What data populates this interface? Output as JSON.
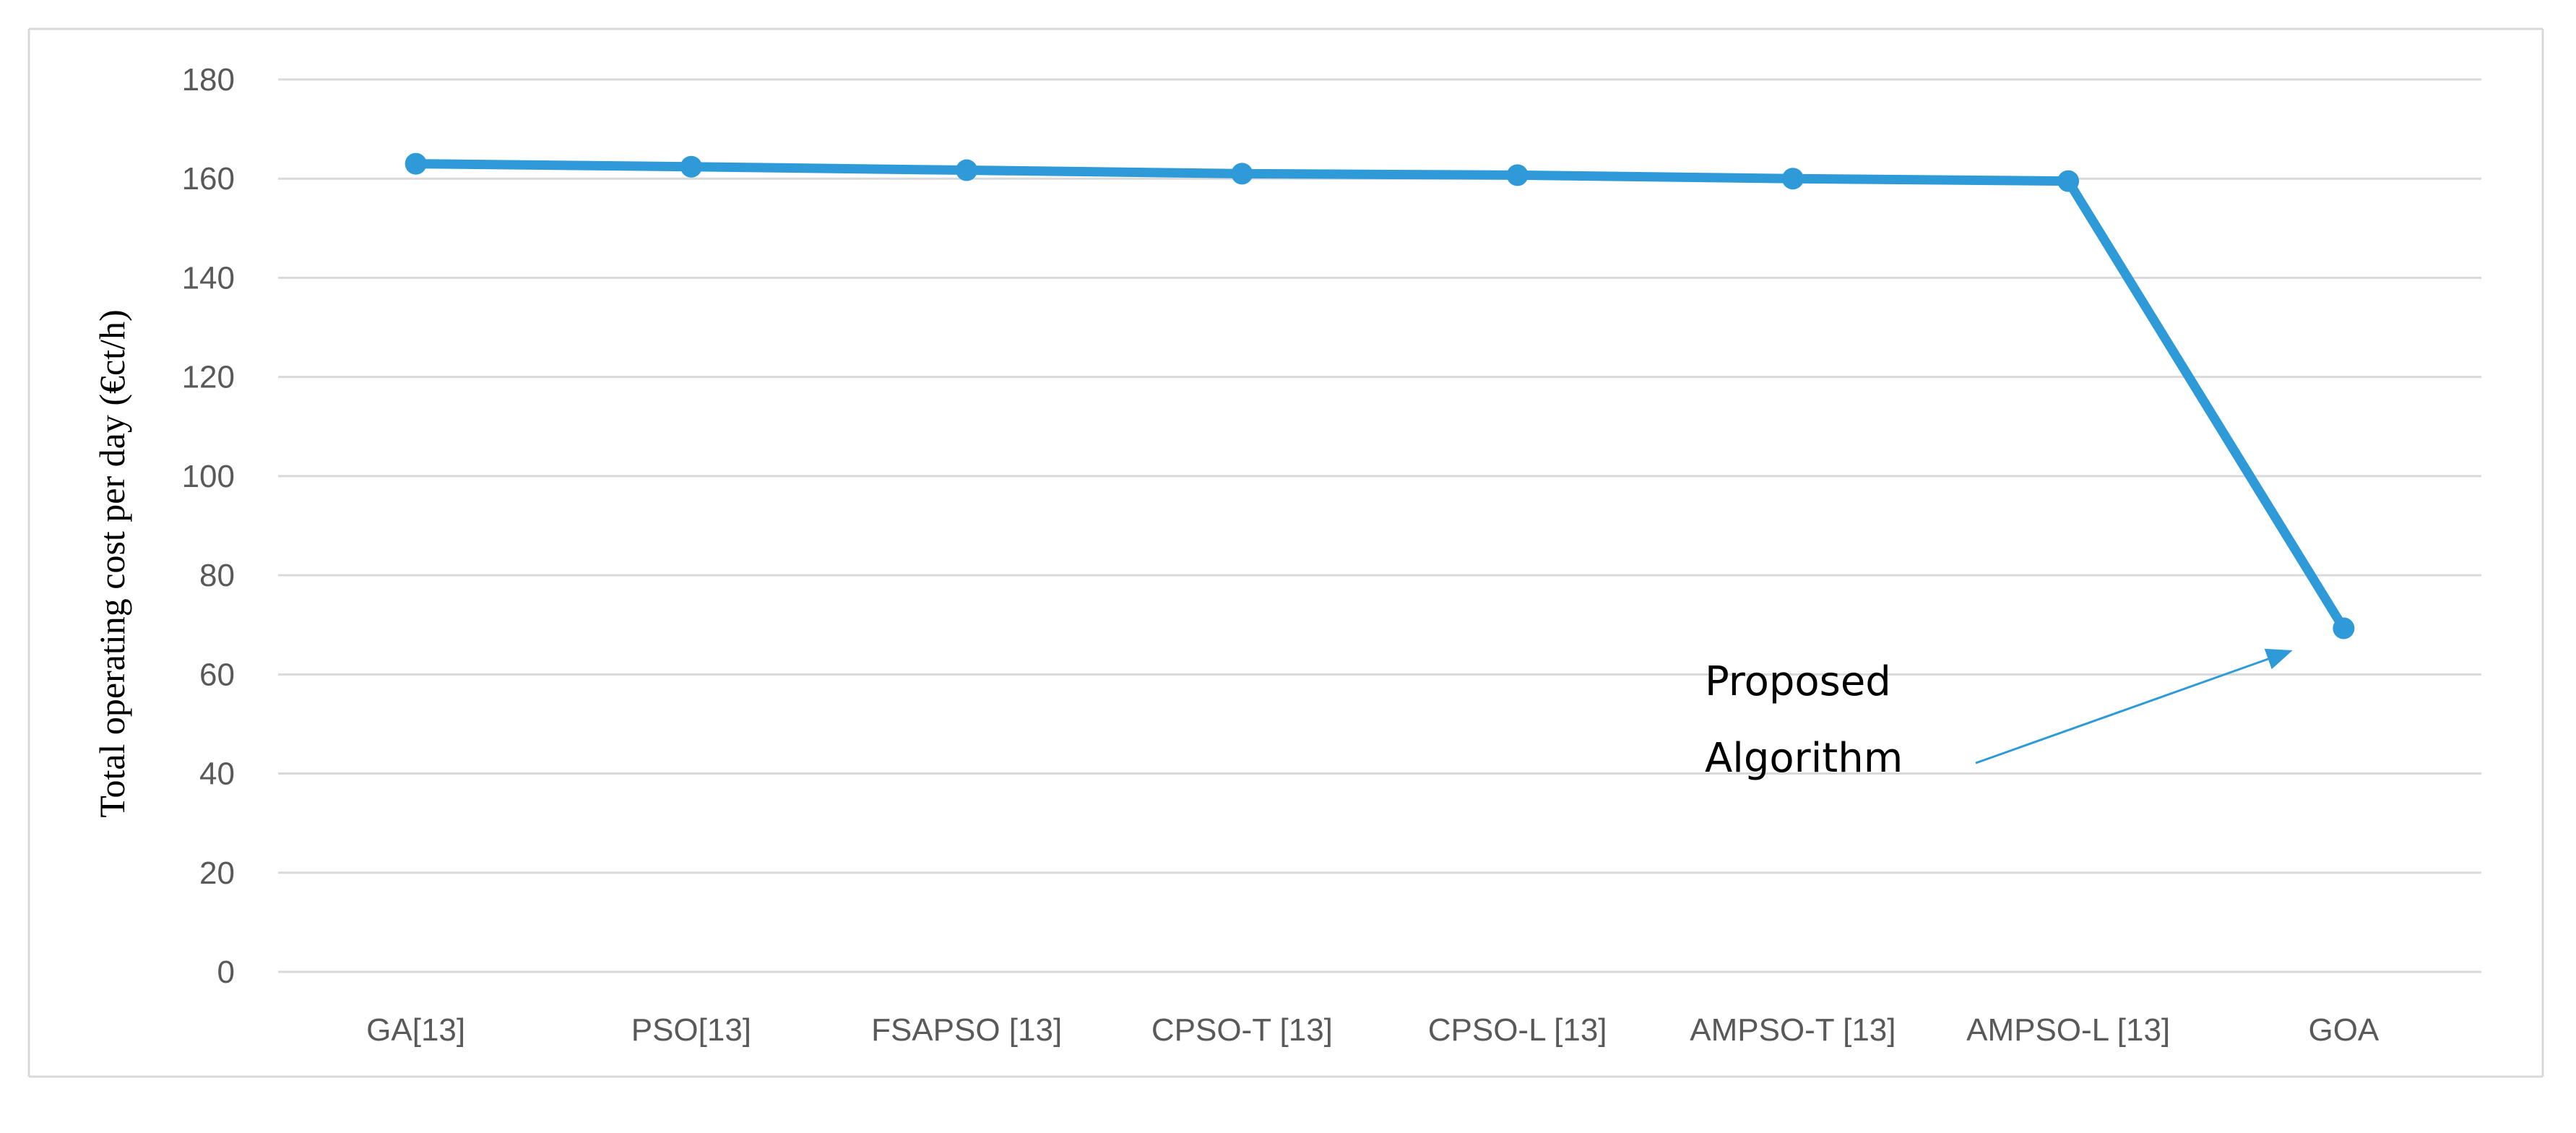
{
  "chart_data": {
    "type": "line",
    "categories": [
      "GA[13]",
      "PSO[13]",
      "FSAPSO [13]",
      "CPSO-T [13]",
      "CPSO-L [13]",
      "AMPSO-T [13]",
      "AMPSO-L [13]",
      "GOA"
    ],
    "series": [
      {
        "values": [
          163.0,
          162.4,
          161.7,
          161.0,
          160.7,
          160.0,
          159.5,
          69.3
        ],
        "color": "#2E9BD8"
      }
    ],
    "title": "",
    "xlabel": "",
    "ylabel": "Total operating cost per day (€ct/h)",
    "ylim": [
      0,
      180
    ],
    "yticks": [
      0,
      20,
      40,
      60,
      80,
      100,
      120,
      140,
      160,
      180
    ],
    "grid": true,
    "markers": true,
    "annotation": {
      "lines": [
        "Proposed",
        "Algorithm"
      ],
      "points_to": "GOA",
      "arrow_color": "#2E9BD8"
    }
  }
}
